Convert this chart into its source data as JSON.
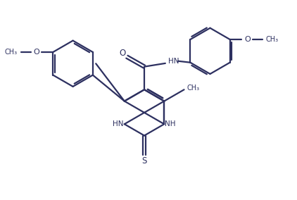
{
  "line_color": "#2d3060",
  "bg_color": "#ffffff",
  "line_width": 1.6,
  "fig_width": 4.22,
  "fig_height": 2.84,
  "dpi": 100,
  "xlim": [
    0,
    10
  ],
  "ylim": [
    0,
    7
  ]
}
